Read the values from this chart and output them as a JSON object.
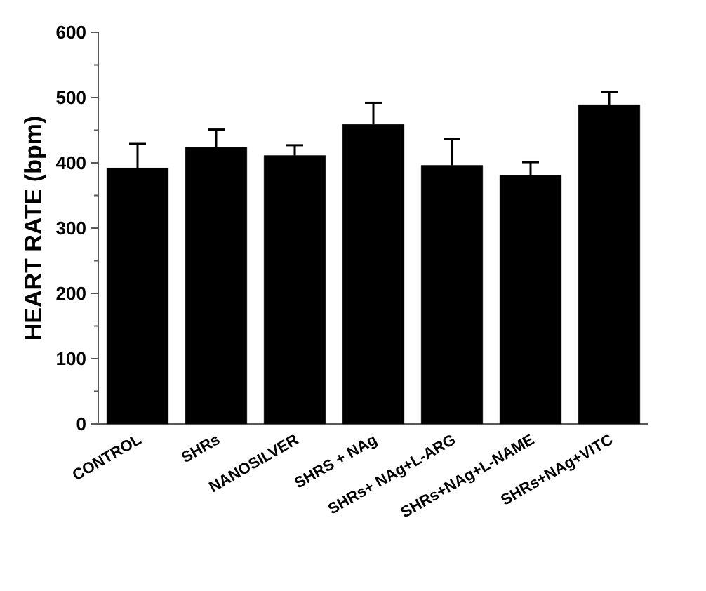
{
  "chart_data": {
    "type": "bar",
    "ylabel": "HEART RATE (bpm)",
    "categories": [
      "CONTROL",
      "SHRs",
      "NANOSILVER",
      "SHRS + NAg",
      "SHRs+ NAg+L-ARG",
      "SHRs+NAg+L-NAME",
      "SHRs+NAg+VITC"
    ],
    "values": [
      392,
      424,
      411,
      459,
      396,
      381,
      489
    ],
    "errors": [
      37,
      27,
      16,
      33,
      41,
      20,
      20
    ],
    "color": "#000000",
    "ylim": [
      0,
      600
    ],
    "yticks": [
      0,
      100,
      200,
      300,
      400,
      500,
      600
    ],
    "grid": false
  }
}
